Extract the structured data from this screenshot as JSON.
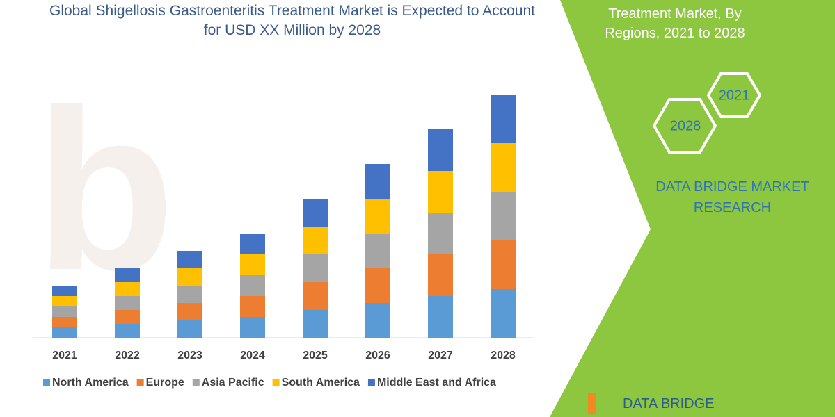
{
  "chart_data": {
    "type": "stacked-bar",
    "title": "Global Shigellosis Gastroenteritis Treatment Market is Expected to Account for USD XX Million by 2028",
    "categories": [
      "2021",
      "2022",
      "2023",
      "2024",
      "2025",
      "2026",
      "2027",
      "2028"
    ],
    "series": [
      {
        "name": "North America",
        "color": "#5b9bd5",
        "values": [
          3,
          4,
          5,
          6,
          8,
          10,
          12,
          14
        ]
      },
      {
        "name": "Europe",
        "color": "#ed7d31",
        "values": [
          3,
          4,
          5,
          6,
          8,
          10,
          12,
          14
        ]
      },
      {
        "name": "Asia Pacific",
        "color": "#a5a5a5",
        "values": [
          3,
          4,
          5,
          6,
          8,
          10,
          12,
          14
        ]
      },
      {
        "name": "South America",
        "color": "#ffc000",
        "values": [
          3,
          4,
          5,
          6,
          8,
          10,
          12,
          14
        ]
      },
      {
        "name": "Middle East and Africa",
        "color": "#4472c4",
        "values": [
          3,
          4,
          5,
          6,
          8,
          10,
          12,
          14
        ]
      }
    ],
    "ylim": [
      0,
      80
    ]
  },
  "panel": {
    "heading": "Treatment Market, By Regions, 2021 to 2028",
    "hexagons": [
      "2021",
      "2028"
    ],
    "brand": "DATA BRIDGE MARKET RESEARCH",
    "logo": "DATA BRIDGE"
  }
}
